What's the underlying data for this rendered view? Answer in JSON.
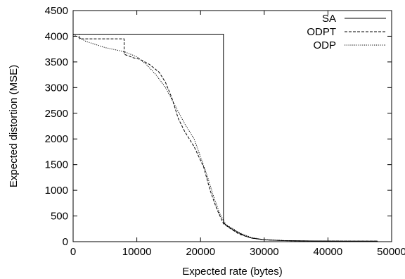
{
  "chart_data": {
    "type": "line",
    "title": "",
    "xlabel": "Expected rate (bytes)",
    "ylabel": "Expected distortion (MSE)",
    "xlim": [
      0,
      50000
    ],
    "ylim": [
      0,
      4500
    ],
    "x_ticks": [
      0,
      10000,
      20000,
      30000,
      40000,
      50000
    ],
    "y_ticks": [
      0,
      500,
      1000,
      1500,
      2000,
      2500,
      3000,
      3500,
      4000,
      4500
    ],
    "x_tick_labels": [
      "0",
      "10000",
      "20000",
      "30000",
      "40000",
      "50000"
    ],
    "y_tick_labels": [
      "0",
      "500",
      "1000",
      "1500",
      "2000",
      "2500",
      "3000",
      "3500",
      "4000",
      "4500"
    ],
    "grid": false,
    "legend_position": "top-right",
    "series": [
      {
        "name": "SA",
        "style": "solid",
        "x": [
          0,
          23600,
          23600,
          24000,
          25000,
          26000,
          27000,
          28000,
          30000,
          33000,
          36000,
          40000,
          44000,
          47800
        ],
        "y": [
          4040,
          4040,
          380,
          320,
          240,
          170,
          110,
          70,
          35,
          20,
          15,
          12,
          10,
          10
        ]
      },
      {
        "name": "ODPT",
        "style": "dashed",
        "x": [
          0,
          1000,
          1000,
          8000,
          8000,
          9500,
          10500,
          12000,
          13500,
          14500,
          15500,
          16500,
          17500,
          19000,
          20500,
          21500,
          22500,
          23600,
          24500,
          26000,
          28000,
          30000,
          33000,
          36000,
          40000,
          44000,
          47800
        ],
        "y": [
          4040,
          4040,
          3950,
          3950,
          3650,
          3580,
          3550,
          3450,
          3300,
          3100,
          2800,
          2400,
          2150,
          1850,
          1450,
          1000,
          650,
          350,
          270,
          150,
          70,
          35,
          20,
          15,
          12,
          10,
          10
        ],
        "draw_steps": true
      },
      {
        "name": "ODP",
        "style": "dotted",
        "x": [
          0,
          2000,
          5000,
          8000,
          10000,
          11500,
          13000,
          14500,
          16000,
          17500,
          19000,
          20000,
          21000,
          22000,
          23000,
          24000,
          25000,
          26000,
          28000,
          30000,
          33000,
          36000,
          40000,
          44000,
          47800
        ],
        "y": [
          4040,
          3900,
          3780,
          3700,
          3600,
          3450,
          3250,
          3000,
          2650,
          2300,
          2000,
          1650,
          1300,
          900,
          550,
          330,
          260,
          180,
          80,
          40,
          22,
          15,
          12,
          10,
          10
        ]
      }
    ]
  }
}
